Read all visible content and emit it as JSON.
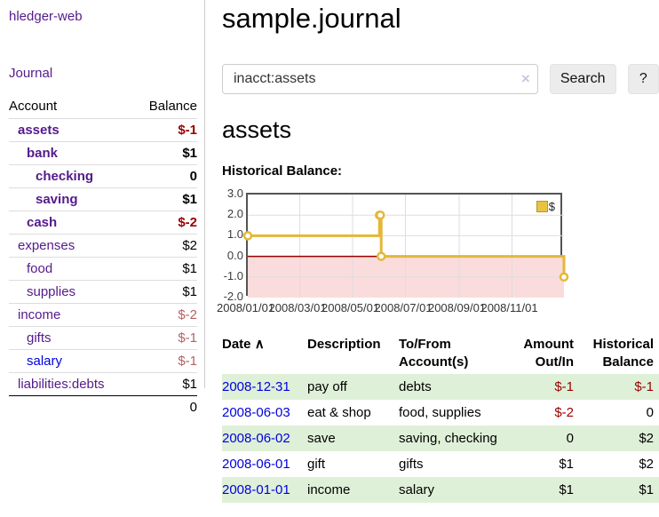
{
  "app": {
    "title": "hledger-web"
  },
  "colors": {
    "purple_link": "#551a8b",
    "blue_link": "#0000e0",
    "negative_strong": "#990000",
    "negative_soft": "#b36262",
    "stripe_green": "#dff0d8",
    "chart_line_gold": "#e3b838",
    "chart_negative_bg": "#fadcdc",
    "zero_line_red": "#990000"
  },
  "sidebar": {
    "journal_link": "Journal",
    "accounts_table": {
      "headers": {
        "account": "Account",
        "balance": "Balance"
      },
      "rows": [
        {
          "label": "assets",
          "indent": 0,
          "bold": true,
          "balance": "$-1",
          "negative": "strong",
          "link_color": "purple"
        },
        {
          "label": "bank",
          "indent": 1,
          "bold": true,
          "balance": "$1",
          "negative": null,
          "link_color": "purple"
        },
        {
          "label": "checking",
          "indent": 2,
          "bold": true,
          "balance": "0",
          "negative": null,
          "link_color": "purple"
        },
        {
          "label": "saving",
          "indent": 2,
          "bold": true,
          "balance": "$1",
          "negative": null,
          "link_color": "purple"
        },
        {
          "label": "cash",
          "indent": 1,
          "bold": true,
          "balance": "$-2",
          "negative": "strong",
          "link_color": "purple"
        },
        {
          "label": "expenses",
          "indent": 0,
          "bold": false,
          "balance": "$2",
          "negative": null,
          "link_color": "purple"
        },
        {
          "label": "food",
          "indent": 1,
          "bold": false,
          "balance": "$1",
          "negative": null,
          "link_color": "purple"
        },
        {
          "label": "supplies",
          "indent": 1,
          "bold": false,
          "balance": "$1",
          "negative": null,
          "link_color": "purple"
        },
        {
          "label": "income",
          "indent": 0,
          "bold": false,
          "balance": "$-2",
          "negative": "soft",
          "link_color": "purple"
        },
        {
          "label": "gifts",
          "indent": 1,
          "bold": false,
          "balance": "$-1",
          "negative": "soft",
          "link_color": "purple"
        },
        {
          "label": "salary",
          "indent": 1,
          "bold": false,
          "balance": "$-1",
          "negative": "soft",
          "link_color": "blue"
        },
        {
          "label": "liabilities:debts",
          "indent": 0,
          "bold": false,
          "balance": "$1",
          "negative": null,
          "link_color": "purple"
        }
      ],
      "total": "0"
    }
  },
  "header": {
    "title": "sample.journal"
  },
  "search": {
    "value": "inacct:assets",
    "clear_label": "×",
    "button_label": "Search",
    "help_label": "?"
  },
  "account_page": {
    "title": "assets",
    "chart_heading": "Historical Balance:"
  },
  "chart_data": {
    "type": "line",
    "title": "Historical Balance",
    "step": true,
    "x_range": [
      "2008-01-01",
      "2008-12-31"
    ],
    "ylim": [
      -2.0,
      3.0
    ],
    "y_ticks": [
      3.0,
      2.0,
      1.0,
      0.0,
      -1.0,
      -2.0
    ],
    "x_ticks": [
      "2008/01/01",
      "2008/03/01",
      "2008/05/01",
      "2008/07/01",
      "2008/09/01",
      "2008/11/01"
    ],
    "grid": true,
    "legend_position": "top-right",
    "series": [
      {
        "name": "$",
        "color": "#e3b838",
        "points": [
          [
            "2008-01-01",
            1
          ],
          [
            "2008-06-01",
            2
          ],
          [
            "2008-06-02",
            2
          ],
          [
            "2008-06-03",
            0
          ],
          [
            "2008-12-31",
            -1
          ]
        ]
      }
    ],
    "negative_region_color": "#fadcdc",
    "zero_line_color": "#990000"
  },
  "register": {
    "columns": [
      {
        "line1": "Date",
        "line2": "",
        "sort_icon": "∧"
      },
      {
        "line1": "Description",
        "line2": ""
      },
      {
        "line1": "To/From",
        "line2": "Account(s)"
      },
      {
        "line1": "Amount",
        "line2": "Out/In"
      },
      {
        "line1": "Historical",
        "line2": "Balance"
      }
    ],
    "rows": [
      {
        "date": "2008-12-31",
        "description": "pay off",
        "accounts": "debts",
        "amount": "$-1",
        "amount_negative": true,
        "balance": "$-1",
        "balance_negative": true,
        "shaded": true
      },
      {
        "date": "2008-06-03",
        "description": "eat & shop",
        "accounts": "food, supplies",
        "amount": "$-2",
        "amount_negative": true,
        "balance": "0",
        "balance_negative": false,
        "shaded": false
      },
      {
        "date": "2008-06-02",
        "description": "save",
        "accounts": "saving, checking",
        "amount": "0",
        "amount_negative": false,
        "balance": "$2",
        "balance_negative": false,
        "shaded": true
      },
      {
        "date": "2008-06-01",
        "description": "gift",
        "accounts": "gifts",
        "amount": "$1",
        "amount_negative": false,
        "balance": "$2",
        "balance_negative": false,
        "shaded": false
      },
      {
        "date": "2008-01-01",
        "description": "income",
        "accounts": "salary",
        "amount": "$1",
        "amount_negative": false,
        "balance": "$1",
        "balance_negative": false,
        "shaded": true
      }
    ]
  }
}
